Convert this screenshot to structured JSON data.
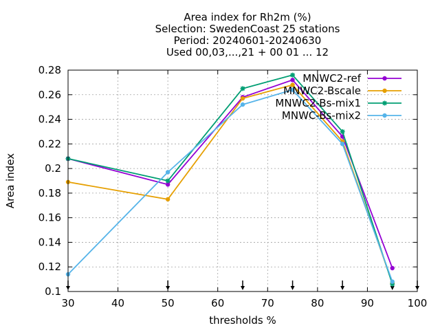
{
  "chart_data": {
    "type": "line",
    "title_lines": [
      "Area index  for Rh2m (%)",
      "Selection: SwedenCoast     25 stations",
      "Period: 20240601-20240630",
      "Used 00,03,...,21 + 00 01 ... 12"
    ],
    "xlabel": "thresholds %",
    "ylabel": "Area index",
    "xlim": [
      30,
      100
    ],
    "ylim": [
      0.1,
      0.28
    ],
    "xticks": [
      30,
      40,
      50,
      60,
      70,
      80,
      90,
      100
    ],
    "yticks": [
      0.1,
      0.12,
      0.14,
      0.16,
      0.18,
      0.2,
      0.22,
      0.24,
      0.26,
      0.28
    ],
    "ytick_labels": [
      "0.1",
      "0.12",
      "0.14",
      "0.16",
      "0.18",
      "0.2",
      "0.22",
      "0.24",
      "0.26",
      "0.28"
    ],
    "grid": true,
    "legend_position": "top-right",
    "threshold_arrows": [
      30,
      50,
      65,
      75,
      85,
      95,
      100
    ],
    "series": [
      {
        "name": "MNWC2-ref",
        "color": "#9400d3",
        "marker": "circle",
        "x": [
          30,
          50,
          65,
          75,
          85,
          95
        ],
        "y": [
          0.208,
          0.187,
          0.258,
          0.272,
          0.226,
          0.119
        ]
      },
      {
        "name": "MNWC2-Bscale",
        "color": "#e69f00",
        "marker": "circle",
        "x": [
          30,
          50,
          65,
          75,
          85,
          95
        ],
        "y": [
          0.189,
          0.175,
          0.257,
          0.268,
          0.222,
          0.107
        ]
      },
      {
        "name": "MNWC2-Bs-mix1",
        "color": "#009e73",
        "marker": "star",
        "x": [
          30,
          50,
          65,
          75,
          85,
          95
        ],
        "y": [
          0.208,
          0.19,
          0.265,
          0.276,
          0.23,
          0.106
        ]
      },
      {
        "name": "MNWC-Bs-mix2",
        "color": "#56b4e9",
        "marker": "circle",
        "x": [
          30,
          50,
          65,
          75,
          85,
          95
        ],
        "y": [
          0.114,
          0.197,
          0.252,
          0.264,
          0.22,
          0.108
        ]
      }
    ]
  }
}
